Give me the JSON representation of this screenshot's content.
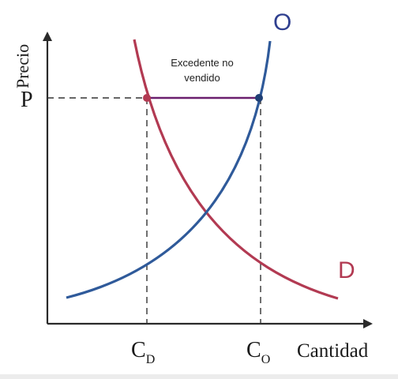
{
  "axes": {
    "y_label": "Precio",
    "x_label": "Cantidad",
    "price_label": "P"
  },
  "curves": {
    "supply_label": "O",
    "demand_label": "D",
    "supply_color": "#2f5a9a",
    "demand_color": "#b23a52"
  },
  "quantities": {
    "demand_main": "C",
    "demand_sub": "D",
    "supply_main": "C",
    "supply_sub": "O"
  },
  "annotation": {
    "line1": "Excedente no",
    "line2": "vendido",
    "line_color": "#6a1f6e"
  }
}
